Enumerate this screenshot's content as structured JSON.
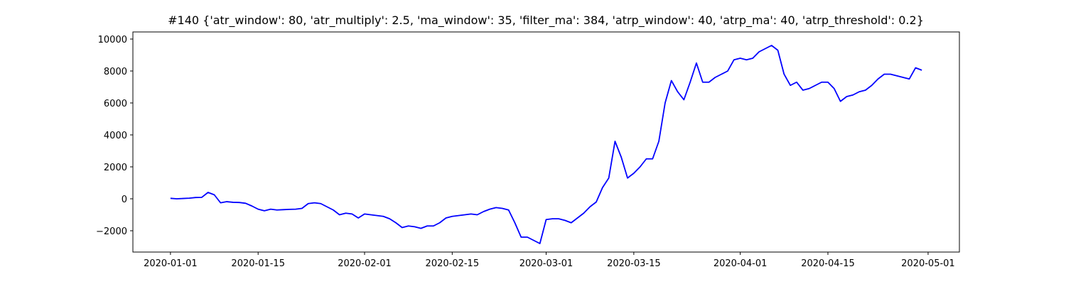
{
  "chart_data": {
    "type": "line",
    "title": "#140 {'atr_window': 80, 'atr_multiply': 2.5, 'ma_window': 35, 'filter_ma': 384, 'atrp_window': 40, 'atrp_ma': 40, 'atrp_threshold': 0.2}",
    "x": [
      "2020-01-01",
      "2020-01-02",
      "2020-01-03",
      "2020-01-04",
      "2020-01-05",
      "2020-01-06",
      "2020-01-07",
      "2020-01-08",
      "2020-01-09",
      "2020-01-10",
      "2020-01-11",
      "2020-01-12",
      "2020-01-13",
      "2020-01-14",
      "2020-01-15",
      "2020-01-16",
      "2020-01-17",
      "2020-01-18",
      "2020-01-19",
      "2020-01-20",
      "2020-01-21",
      "2020-01-22",
      "2020-01-23",
      "2020-01-24",
      "2020-01-25",
      "2020-01-26",
      "2020-01-27",
      "2020-01-28",
      "2020-01-29",
      "2020-01-30",
      "2020-01-31",
      "2020-02-01",
      "2020-02-02",
      "2020-02-03",
      "2020-02-04",
      "2020-02-05",
      "2020-02-06",
      "2020-02-07",
      "2020-02-08",
      "2020-02-09",
      "2020-02-10",
      "2020-02-11",
      "2020-02-12",
      "2020-02-13",
      "2020-02-14",
      "2020-02-15",
      "2020-02-16",
      "2020-02-17",
      "2020-02-18",
      "2020-02-19",
      "2020-02-20",
      "2020-02-21",
      "2020-02-22",
      "2020-02-23",
      "2020-02-24",
      "2020-02-25",
      "2020-02-26",
      "2020-02-27",
      "2020-02-28",
      "2020-02-29",
      "2020-03-01",
      "2020-03-02",
      "2020-03-03",
      "2020-03-04",
      "2020-03-05",
      "2020-03-06",
      "2020-03-07",
      "2020-03-08",
      "2020-03-09",
      "2020-03-10",
      "2020-03-11",
      "2020-03-12",
      "2020-03-13",
      "2020-03-14",
      "2020-03-15",
      "2020-03-16",
      "2020-03-17",
      "2020-03-18",
      "2020-03-19",
      "2020-03-20",
      "2020-03-21",
      "2020-03-22",
      "2020-03-23",
      "2020-03-24",
      "2020-03-25",
      "2020-03-26",
      "2020-03-27",
      "2020-03-28",
      "2020-03-29",
      "2020-03-30",
      "2020-03-31",
      "2020-04-01",
      "2020-04-02",
      "2020-04-03",
      "2020-04-04",
      "2020-04-05",
      "2020-04-06",
      "2020-04-07",
      "2020-04-08",
      "2020-04-09",
      "2020-04-10",
      "2020-04-11",
      "2020-04-12",
      "2020-04-13",
      "2020-04-14",
      "2020-04-15",
      "2020-04-16",
      "2020-04-17",
      "2020-04-18",
      "2020-04-19",
      "2020-04-20",
      "2020-04-21",
      "2020-04-22",
      "2020-04-23",
      "2020-04-24",
      "2020-04-25",
      "2020-04-26",
      "2020-04-27",
      "2020-04-28",
      "2020-04-29",
      "2020-04-30"
    ],
    "series": [
      {
        "color": "#0000ff",
        "values": [
          30,
          0,
          20,
          40,
          80,
          90,
          400,
          250,
          -250,
          -180,
          -220,
          -230,
          -280,
          -450,
          -650,
          -750,
          -650,
          -700,
          -680,
          -660,
          -650,
          -600,
          -300,
          -250,
          -300,
          -500,
          -700,
          -1000,
          -900,
          -950,
          -1200,
          -950,
          -1000,
          -1050,
          -1100,
          -1250,
          -1500,
          -1800,
          -1700,
          -1750,
          -1850,
          -1700,
          -1700,
          -1500,
          -1200,
          -1100,
          -1050,
          -1000,
          -950,
          -1000,
          -800,
          -650,
          -550,
          -600,
          -700,
          -1500,
          -2400,
          -2400,
          -2600,
          -2800,
          -1300,
          -1250,
          -1250,
          -1350,
          -1500,
          -1200,
          -900,
          -500,
          -200,
          700,
          1300,
          3600,
          2600,
          1300,
          1600,
          2000,
          2500,
          2500,
          3600,
          6000,
          7400,
          6700,
          6200,
          7300,
          8500,
          7300,
          7300,
          7600,
          7800,
          8000,
          8700,
          8800,
          8700,
          8800,
          9200,
          9400,
          9600,
          9300,
          7800,
          7100,
          7300,
          6800,
          6900,
          7100,
          7300,
          7300,
          6900,
          6100,
          6400,
          6500,
          6700,
          6800,
          7100,
          7500,
          7800,
          7800,
          7700,
          7600,
          7500,
          8200,
          8050
        ]
      }
    ],
    "xlim": [
      "2019-12-26",
      "2020-05-06"
    ],
    "xticks": [
      "2020-01-01",
      "2020-01-15",
      "2020-02-01",
      "2020-02-15",
      "2020-03-01",
      "2020-03-15",
      "2020-04-01",
      "2020-04-15",
      "2020-05-01"
    ],
    "ylim": [
      -3333,
      10444
    ],
    "yticks": [
      {
        "value": -2000,
        "label": "−2000"
      },
      0,
      2000,
      4000,
      6000,
      8000,
      10000
    ],
    "grid": false
  }
}
